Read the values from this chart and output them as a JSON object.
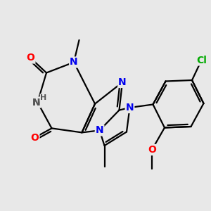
{
  "bg_color": "#e8e8e8",
  "atom_colors": {
    "N": "#0000ee",
    "O": "#ff0000",
    "H": "#555555",
    "Cl": "#00aa00"
  },
  "bond_color": "#000000",
  "bond_width": 1.6,
  "font_size_atoms": 10,
  "font_size_small": 9,
  "font_size_cl": 9
}
